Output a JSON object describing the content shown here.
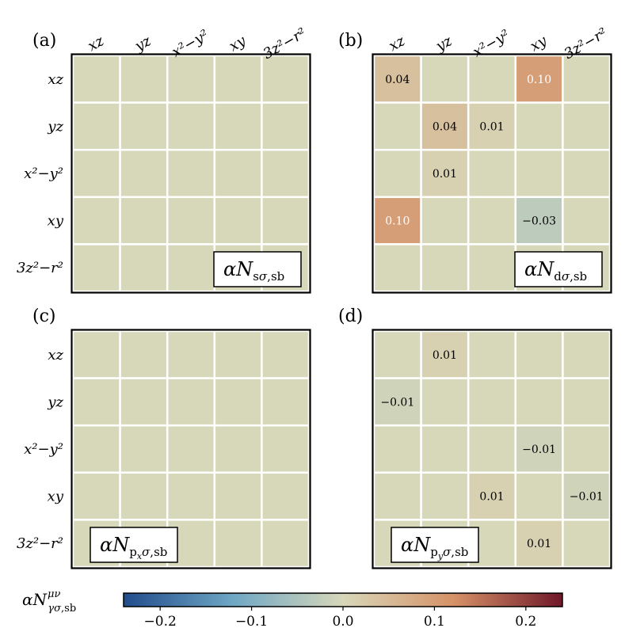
{
  "chart_data": {
    "type": "heatmap",
    "colorscale": "RdYlBu_r",
    "vmin": -0.24,
    "vmax": 0.24,
    "colorbar": {
      "label": "αN^{μν}_{γσ,sb}",
      "ticks": [
        -0.2,
        -0.1,
        0.0,
        0.1,
        0.2
      ],
      "tick_labels": [
        "−0.2",
        "−0.1",
        "0.0",
        "0.1",
        "0.2"
      ]
    },
    "orbitals": [
      "xz",
      "yz",
      "x²−y²",
      "xy",
      "3z²−r²"
    ],
    "panels": [
      {
        "panel_label": "(a)",
        "matrix_label": "αN_{sσ,sb}",
        "label_position": "bottom-right",
        "values": [
          [
            0,
            0,
            0,
            0,
            0
          ],
          [
            0,
            0,
            0,
            0,
            0
          ],
          [
            0,
            0,
            0,
            0,
            0
          ],
          [
            0,
            0,
            0,
            0,
            0
          ],
          [
            0,
            0,
            0,
            0,
            0
          ]
        ],
        "cell_labels": [
          [
            "",
            "",
            "",
            "",
            ""
          ],
          [
            "",
            "",
            "",
            "",
            ""
          ],
          [
            "",
            "",
            "",
            "",
            ""
          ],
          [
            "",
            "",
            "",
            "",
            ""
          ],
          [
            "",
            "",
            "",
            "",
            ""
          ]
        ]
      },
      {
        "panel_label": "(b)",
        "matrix_label": "αN_{dσ,sb}",
        "label_position": "bottom-right",
        "values": [
          [
            0.04,
            0,
            0,
            0.1,
            0
          ],
          [
            0,
            0.04,
            0.01,
            0,
            0
          ],
          [
            0,
            0.01,
            0,
            0,
            0
          ],
          [
            0.1,
            0,
            0,
            -0.03,
            0
          ],
          [
            0,
            0,
            0,
            0,
            0
          ]
        ],
        "cell_labels": [
          [
            "0.04",
            "",
            "",
            "0.10",
            ""
          ],
          [
            "",
            "0.04",
            "0.01",
            "",
            ""
          ],
          [
            "",
            "0.01",
            "",
            "",
            ""
          ],
          [
            "0.10",
            "",
            "",
            "−0.03",
            ""
          ],
          [
            "",
            "",
            "",
            "",
            ""
          ]
        ]
      },
      {
        "panel_label": "(c)",
        "matrix_label": "αN_{p_xσ,sb}",
        "label_position": "bottom-left",
        "values": [
          [
            0,
            0,
            0,
            0,
            0
          ],
          [
            0,
            0,
            0,
            0,
            0
          ],
          [
            0,
            0,
            0,
            0,
            0
          ],
          [
            0,
            0,
            0,
            0,
            0
          ],
          [
            0,
            0,
            0,
            0,
            0
          ]
        ],
        "cell_labels": [
          [
            "",
            "",
            "",
            "",
            ""
          ],
          [
            "",
            "",
            "",
            "",
            ""
          ],
          [
            "",
            "",
            "",
            "",
            ""
          ],
          [
            "",
            "",
            "",
            "",
            ""
          ],
          [
            "",
            "",
            "",
            "",
            ""
          ]
        ]
      },
      {
        "panel_label": "(d)",
        "matrix_label": "αN_{p_yσ,sb}",
        "label_position": "bottom-left",
        "values": [
          [
            0,
            0.01,
            0,
            0,
            0
          ],
          [
            -0.01,
            0,
            0,
            0,
            0
          ],
          [
            0,
            0,
            0,
            -0.01,
            0
          ],
          [
            0,
            0,
            0.01,
            0,
            -0.01
          ],
          [
            0,
            0,
            0,
            0.01,
            0
          ]
        ],
        "cell_labels": [
          [
            "",
            "0.01",
            "",
            "",
            ""
          ],
          [
            "−0.01",
            "",
            "",
            "",
            ""
          ],
          [
            "",
            "",
            "",
            "−0.01",
            ""
          ],
          [
            "",
            "",
            "0.01",
            "",
            "−0.01"
          ],
          [
            "",
            "",
            "",
            "0.01",
            ""
          ]
        ]
      }
    ]
  }
}
